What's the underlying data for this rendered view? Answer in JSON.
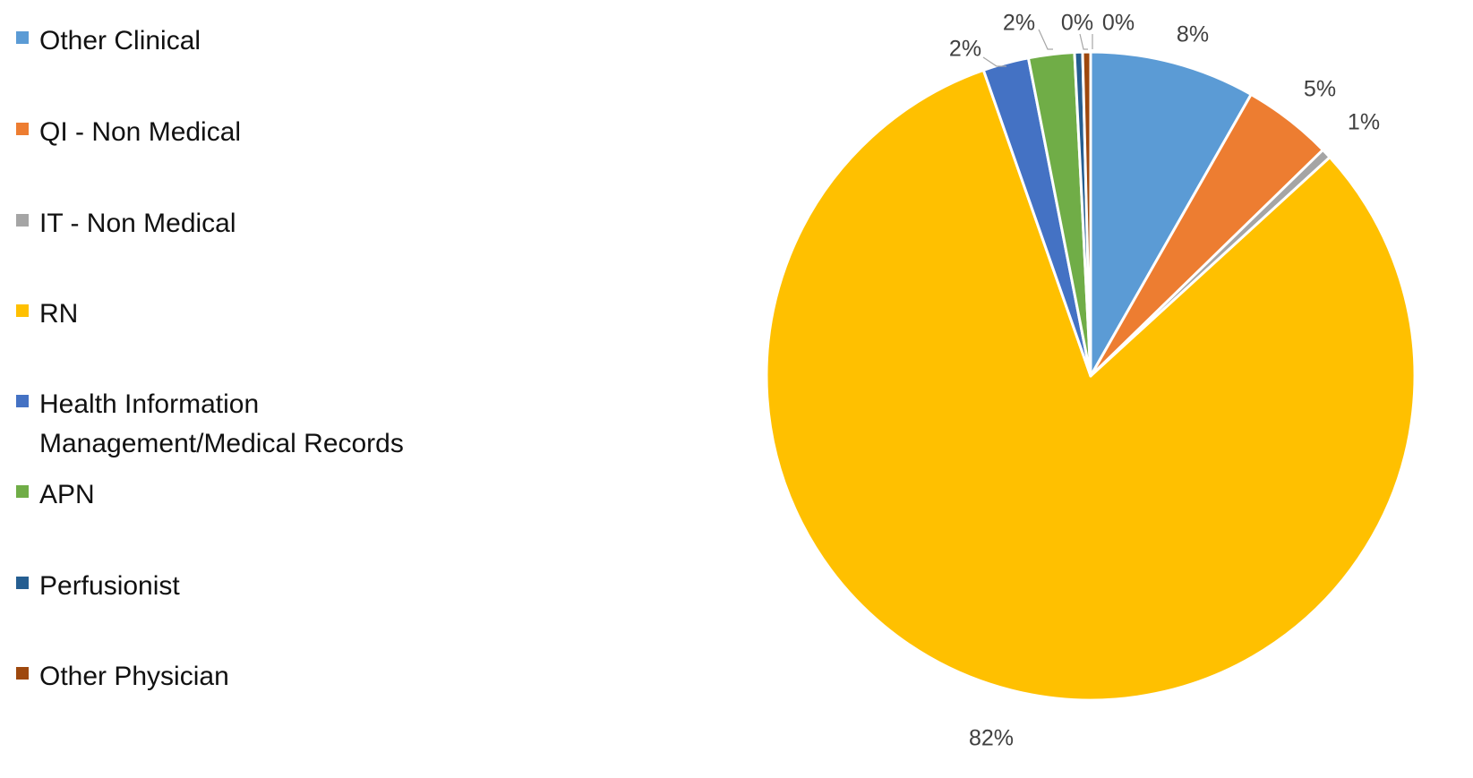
{
  "chart_data": {
    "type": "pie",
    "title": "",
    "categories": [
      "Other Clinical",
      "QI - Non Medical",
      "IT - Non Medical",
      "RN",
      "Health Information Management/Medical Records",
      "APN",
      "Perfusionist",
      "Other Physician"
    ],
    "values": [
      8.3,
      4.5,
      0.5,
      82.0,
      2.3,
      2.3,
      0.4,
      0.4
    ],
    "data_labels": [
      "8%",
      "5%",
      "1%",
      "82%",
      "2%",
      "2%",
      "0%",
      "0%"
    ],
    "colors": [
      "#5B9BD5",
      "#ED7D31",
      "#A5A5A5",
      "#FFC000",
      "#4472C4",
      "#70AD47",
      "#255E91",
      "#9E480E"
    ],
    "legend_position": "left",
    "start_angle": "12 o'clock, clockwise"
  }
}
